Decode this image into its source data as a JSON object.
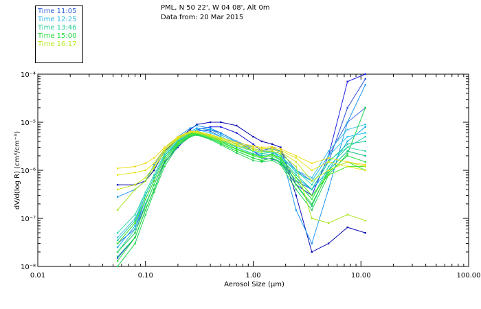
{
  "header": {
    "location": "PML, N 50 22', W 04 08', Alt 0m",
    "data_from": "Data from: 20 Mar 2015"
  },
  "legend": [
    {
      "label": "Time 11:05",
      "color": "#2e5fdc"
    },
    {
      "label": "Time 12:25",
      "color": "#20b4e6"
    },
    {
      "label": "Time 13:46",
      "color": "#22c88e"
    },
    {
      "label": "Time 15:00",
      "color": "#1ed83c"
    },
    {
      "label": "Time 16:17",
      "color": "#b4e81e"
    }
  ],
  "chart_data": {
    "type": "line",
    "title": "",
    "xlabel": "Aerosol Size (µm)",
    "ylabel": "dV/d(log R) (cm³/cm⁻³)",
    "xscale": "log",
    "yscale": "log",
    "xlim": [
      0.01,
      100
    ],
    "ylim_exponents": [
      -8,
      -4
    ],
    "x_ticks": [
      "0.01",
      "0.10",
      "1.00",
      "10.00",
      "100.00"
    ],
    "y_ticks": [
      "10⁻⁸",
      "10⁻⁷",
      "10⁻⁶",
      "10⁻⁵",
      "10⁻⁴"
    ],
    "x": [
      0.055,
      0.08,
      0.1,
      0.12,
      0.15,
      0.2,
      0.26,
      0.3,
      0.4,
      0.5,
      0.7,
      1.0,
      1.2,
      1.5,
      1.8,
      2.5,
      3.5,
      5.0,
      7.5,
      11.0
    ],
    "series": [
      {
        "name": "11:05 a",
        "color": "#0a0ab4",
        "values": [
          5e-07,
          5e-07,
          6e-07,
          1e-06,
          2.5e-06,
          4.5e-06,
          7e-06,
          9e-06,
          1e-05,
          1e-05,
          8.5e-06,
          5e-06,
          4e-06,
          3.5e-06,
          3e-06,
          3e-07,
          2e-08,
          3e-08,
          6.5e-08,
          5e-08
        ]
      },
      {
        "name": "11:05 b",
        "color": "#1e1ee6",
        "values": [
          2e-08,
          5e-08,
          2e-07,
          5e-07,
          1.5e-06,
          3e-06,
          5.5e-06,
          7e-06,
          8e-06,
          8e-06,
          6e-06,
          3.5e-06,
          2.5e-06,
          3e-06,
          2.5e-06,
          5e-07,
          3e-07,
          2e-06,
          7e-05,
          0.0001
        ]
      },
      {
        "name": "11:05 c",
        "color": "#2a50dc",
        "values": [
          1.5e-08,
          4e-08,
          1.5e-07,
          4e-07,
          1.4e-06,
          3.2e-06,
          5e-06,
          6.5e-06,
          7e-06,
          6e-06,
          4e-06,
          2.5e-06,
          1.8e-06,
          1.7e-06,
          1.5e-06,
          6e-07,
          4e-07,
          1.5e-06,
          2e-05,
          8e-05
        ]
      },
      {
        "name": "11:05 d",
        "color": "#3c6ee0",
        "values": [
          3e-08,
          6e-08,
          2.5e-07,
          6e-07,
          1.8e-06,
          3.8e-06,
          6e-06,
          7e-06,
          6.5e-06,
          5e-06,
          3.5e-06,
          2.5e-06,
          2e-06,
          2.2e-06,
          2.5e-06,
          1e-06,
          6e-07,
          2e-06,
          1e-05,
          2e-05
        ]
      },
      {
        "name": "12:25 a",
        "color": "#1e96f0",
        "values": [
          2.8e-07,
          4e-07,
          6e-07,
          1.3e-06,
          2.8e-06,
          5e-06,
          7.5e-06,
          8.5e-06,
          7.5e-06,
          6e-06,
          4e-06,
          3e-06,
          2.8e-06,
          2.8e-06,
          2.5e-06,
          1.5e-07,
          3e-08,
          4e-07,
          1e-05,
          6e-05
        ]
      },
      {
        "name": "12:25 b",
        "color": "#14aaf0",
        "values": [
          2.5e-08,
          7e-08,
          2.5e-07,
          6e-07,
          1.8e-06,
          4e-06,
          6.5e-06,
          7.5e-06,
          7e-06,
          5.5e-06,
          3.8e-06,
          2.8e-06,
          2.5e-06,
          2.5e-06,
          1.8e-06,
          7e-07,
          4e-07,
          1e-06,
          4e-06,
          8e-06
        ]
      },
      {
        "name": "12:25 c",
        "color": "#28c8f0",
        "values": [
          3e-08,
          8e-08,
          3e-07,
          7e-07,
          2e-06,
          4.2e-06,
          6e-06,
          7e-06,
          6e-06,
          5e-06,
          3.5e-06,
          2.5e-06,
          2.2e-06,
          2.5e-06,
          2e-06,
          9e-07,
          6e-07,
          2e-06,
          5e-06,
          6e-06
        ]
      },
      {
        "name": "12:25 d",
        "color": "#3cc0e6",
        "values": [
          4e-08,
          1e-07,
          3.5e-07,
          8e-07,
          2.2e-06,
          4.5e-06,
          6.2e-06,
          6.5e-06,
          5.5e-06,
          4.5e-06,
          3e-06,
          2.2e-06,
          2e-06,
          2.2e-06,
          1.8e-06,
          1e-06,
          7e-07,
          2.5e-06,
          7e-06,
          9e-06
        ]
      },
      {
        "name": "13:46 a",
        "color": "#28d2b4",
        "values": [
          2e-08,
          6e-08,
          2e-07,
          5e-07,
          1.6e-06,
          3.8e-06,
          5.5e-06,
          6e-06,
          5e-06,
          4e-06,
          2.8e-06,
          2e-06,
          1.8e-06,
          2e-06,
          1.6e-06,
          6e-07,
          2.5e-07,
          1.2e-06,
          3e-06,
          5e-06
        ]
      },
      {
        "name": "13:46 b",
        "color": "#1ec8a0",
        "values": [
          3.5e-08,
          9e-08,
          3e-07,
          7e-07,
          2e-06,
          4e-06,
          5.8e-06,
          6.2e-06,
          5.2e-06,
          4.2e-06,
          3e-06,
          2.2e-06,
          2e-06,
          2.2e-06,
          1.8e-06,
          8e-07,
          4e-07,
          1.5e-06,
          3.5e-06,
          4e-06
        ]
      },
      {
        "name": "13:46 c",
        "color": "#32dcaa",
        "values": [
          5e-08,
          1.2e-07,
          3.5e-07,
          8e-07,
          2.2e-06,
          4.5e-06,
          6e-06,
          6e-06,
          5e-06,
          4e-06,
          3.2e-06,
          2.5e-06,
          2.2e-06,
          2.4e-06,
          2e-06,
          1e-06,
          5e-07,
          1.6e-06,
          3e-06,
          2.5e-06
        ]
      },
      {
        "name": "13:46 d",
        "color": "#14be82",
        "values": [
          1.6e-08,
          4e-08,
          1.5e-07,
          4e-07,
          1.4e-06,
          3.5e-06,
          5.2e-06,
          5.6e-06,
          4.6e-06,
          3.6e-06,
          2.5e-06,
          1.8e-06,
          1.6e-06,
          1.8e-06,
          1.4e-06,
          5e-07,
          1.8e-07,
          1e-06,
          2.5e-06,
          2e-06
        ]
      },
      {
        "name": "15:00 a",
        "color": "#1ed250",
        "values": [
          1e-08,
          3e-08,
          1.2e-07,
          3.5e-07,
          1.2e-06,
          3.2e-06,
          5e-06,
          5.4e-06,
          4.4e-06,
          3.4e-06,
          2.3e-06,
          1.6e-06,
          1.5e-06,
          1.6e-06,
          1.3e-06,
          4e-07,
          1.5e-07,
          8e-07,
          2.2e-06,
          2e-05
        ]
      },
      {
        "name": "15:00 b",
        "color": "#28dc3c",
        "values": [
          1.3e-08,
          4e-08,
          1.5e-07,
          4e-07,
          1.4e-06,
          3.4e-06,
          5.2e-06,
          5.6e-06,
          4.6e-06,
          3.6e-06,
          2.5e-06,
          1.8e-06,
          1.6e-06,
          1.8e-06,
          1.5e-06,
          5e-07,
          2e-07,
          9e-07,
          2e-06,
          1.5e-06
        ]
      },
      {
        "name": "15:00 c",
        "color": "#3ce650",
        "values": [
          2e-08,
          5e-08,
          1.8e-07,
          5e-07,
          1.6e-06,
          3.6e-06,
          5.4e-06,
          5.8e-06,
          4.8e-06,
          3.8e-06,
          2.7e-06,
          2e-06,
          1.8e-06,
          2e-06,
          1.7e-06,
          6e-07,
          2.5e-07,
          1e-06,
          1.5e-06,
          1e-06
        ]
      },
      {
        "name": "15:00 d",
        "color": "#50e61e",
        "values": [
          3e-08,
          8e-08,
          2.5e-07,
          6e-07,
          1.8e-06,
          3.8e-06,
          5.6e-06,
          6e-06,
          5e-06,
          4e-06,
          2.8e-06,
          2.1e-06,
          1.9e-06,
          2.1e-06,
          1.8e-06,
          7e-07,
          3e-07,
          8e-07,
          1.2e-06,
          1.2e-06
        ]
      },
      {
        "name": "16:17 a",
        "color": "#aae61e",
        "values": [
          1.5e-07,
          4e-07,
          6e-07,
          1.1e-06,
          2.4e-06,
          4.4e-06,
          6e-06,
          6e-06,
          5e-06,
          4.2e-06,
          3.2e-06,
          2.6e-06,
          2.4e-06,
          2.5e-06,
          2.2e-06,
          1.2e-06,
          1e-07,
          8e-08,
          1.2e-07,
          9e-08
        ]
      },
      {
        "name": "16:17 b",
        "color": "#c8e61e",
        "values": [
          4e-07,
          5e-07,
          7e-07,
          1.2e-06,
          2.6e-06,
          4.6e-06,
          6.2e-06,
          6.2e-06,
          5.2e-06,
          4.4e-06,
          3.4e-06,
          2.8e-06,
          2.6e-06,
          2.7e-06,
          2.4e-06,
          1.5e-06,
          6e-07,
          1e-06,
          1.5e-06,
          1.2e-06
        ]
      },
      {
        "name": "16:17 c",
        "color": "#e6e61e",
        "values": [
          8e-07,
          9e-07,
          1e-06,
          1.4e-06,
          2.8e-06,
          4.8e-06,
          6.4e-06,
          6.4e-06,
          5.4e-06,
          4.6e-06,
          3.6e-06,
          3e-06,
          2.8e-06,
          2.9e-06,
          2.6e-06,
          1.8e-06,
          1e-06,
          1.5e-06,
          1.2e-06,
          1e-06
        ]
      },
      {
        "name": "16:17 d",
        "color": "#f0dc1e",
        "values": [
          1.1e-06,
          1.2e-06,
          1.4e-06,
          1.8e-06,
          3e-06,
          5e-06,
          6.5e-06,
          6.5e-06,
          5.5e-06,
          4.8e-06,
          3.8e-06,
          3.2e-06,
          3e-06,
          3.1e-06,
          2.8e-06,
          2e-06,
          1.4e-06,
          1.8e-06,
          1.5e-06,
          1.3e-06
        ]
      }
    ]
  }
}
